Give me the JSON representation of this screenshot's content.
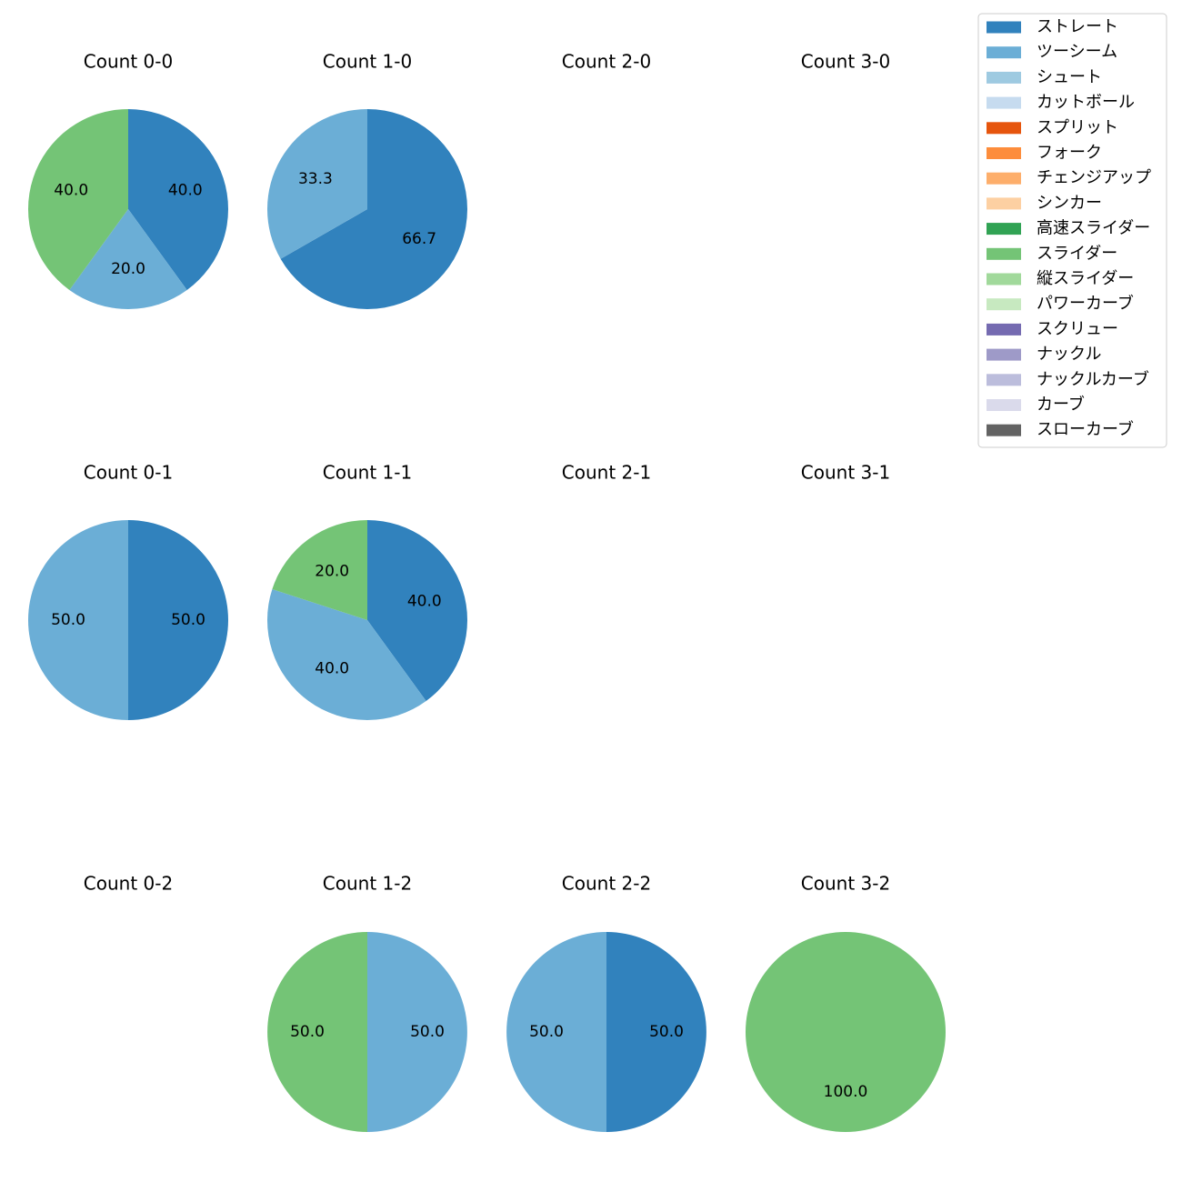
{
  "chart_data": {
    "type": "pie",
    "legend": {
      "placement": "top-right",
      "items": [
        {
          "label": "ストレート",
          "color": "#3182bd"
        },
        {
          "label": "ツーシーム",
          "color": "#6baed6"
        },
        {
          "label": "シュート",
          "color": "#9ecae1"
        },
        {
          "label": "カットボール",
          "color": "#c6dbef"
        },
        {
          "label": "スプリット",
          "color": "#e6550d"
        },
        {
          "label": "フォーク",
          "color": "#fd8d3c"
        },
        {
          "label": "チェンジアップ",
          "color": "#fdae6b"
        },
        {
          "label": "シンカー",
          "color": "#fdd0a2"
        },
        {
          "label": "高速スライダー",
          "color": "#31a354"
        },
        {
          "label": "スライダー",
          "color": "#74c476"
        },
        {
          "label": "縦スライダー",
          "color": "#a1d99b"
        },
        {
          "label": "パワーカーブ",
          "color": "#c7e9c0"
        },
        {
          "label": "スクリュー",
          "color": "#756bb1"
        },
        {
          "label": "ナックル",
          "color": "#9e9ac8"
        },
        {
          "label": "ナックルカーブ",
          "color": "#bcbddc"
        },
        {
          "label": "カーブ",
          "color": "#dadaeb"
        },
        {
          "label": "スローカーブ",
          "color": "#636363"
        }
      ]
    },
    "panels": [
      {
        "title": "Count 0-0",
        "slices": [
          {
            "pitch": "ストレート",
            "value": 40.0,
            "label": "40.0"
          },
          {
            "pitch": "ツーシーム",
            "value": 20.0,
            "label": "20.0"
          },
          {
            "pitch": "スライダー",
            "value": 40.0,
            "label": "40.0"
          }
        ]
      },
      {
        "title": "Count 1-0",
        "slices": [
          {
            "pitch": "ストレート",
            "value": 66.7,
            "label": "66.7"
          },
          {
            "pitch": "ツーシーム",
            "value": 33.3,
            "label": "33.3"
          }
        ]
      },
      {
        "title": "Count 2-0",
        "slices": []
      },
      {
        "title": "Count 3-0",
        "slices": []
      },
      {
        "title": "Count 0-1",
        "slices": [
          {
            "pitch": "ストレート",
            "value": 50.0,
            "label": "50.0"
          },
          {
            "pitch": "ツーシーム",
            "value": 50.0,
            "label": "50.0"
          }
        ]
      },
      {
        "title": "Count 1-1",
        "slices": [
          {
            "pitch": "ストレート",
            "value": 40.0,
            "label": "40.0"
          },
          {
            "pitch": "ツーシーム",
            "value": 40.0,
            "label": "40.0"
          },
          {
            "pitch": "スライダー",
            "value": 20.0,
            "label": "20.0"
          }
        ]
      },
      {
        "title": "Count 2-1",
        "slices": []
      },
      {
        "title": "Count 3-1",
        "slices": []
      },
      {
        "title": "Count 0-2",
        "slices": []
      },
      {
        "title": "Count 1-2",
        "slices": [
          {
            "pitch": "ツーシーム",
            "value": 50.0,
            "label": "50.0"
          },
          {
            "pitch": "スライダー",
            "value": 50.0,
            "label": "50.0"
          }
        ]
      },
      {
        "title": "Count 2-2",
        "slices": [
          {
            "pitch": "ストレート",
            "value": 50.0,
            "label": "50.0"
          },
          {
            "pitch": "ツーシーム",
            "value": 50.0,
            "label": "50.0"
          }
        ]
      },
      {
        "title": "Count 3-2",
        "slices": [
          {
            "pitch": "スライダー",
            "value": 100.0,
            "label": "100.0"
          }
        ]
      }
    ]
  }
}
